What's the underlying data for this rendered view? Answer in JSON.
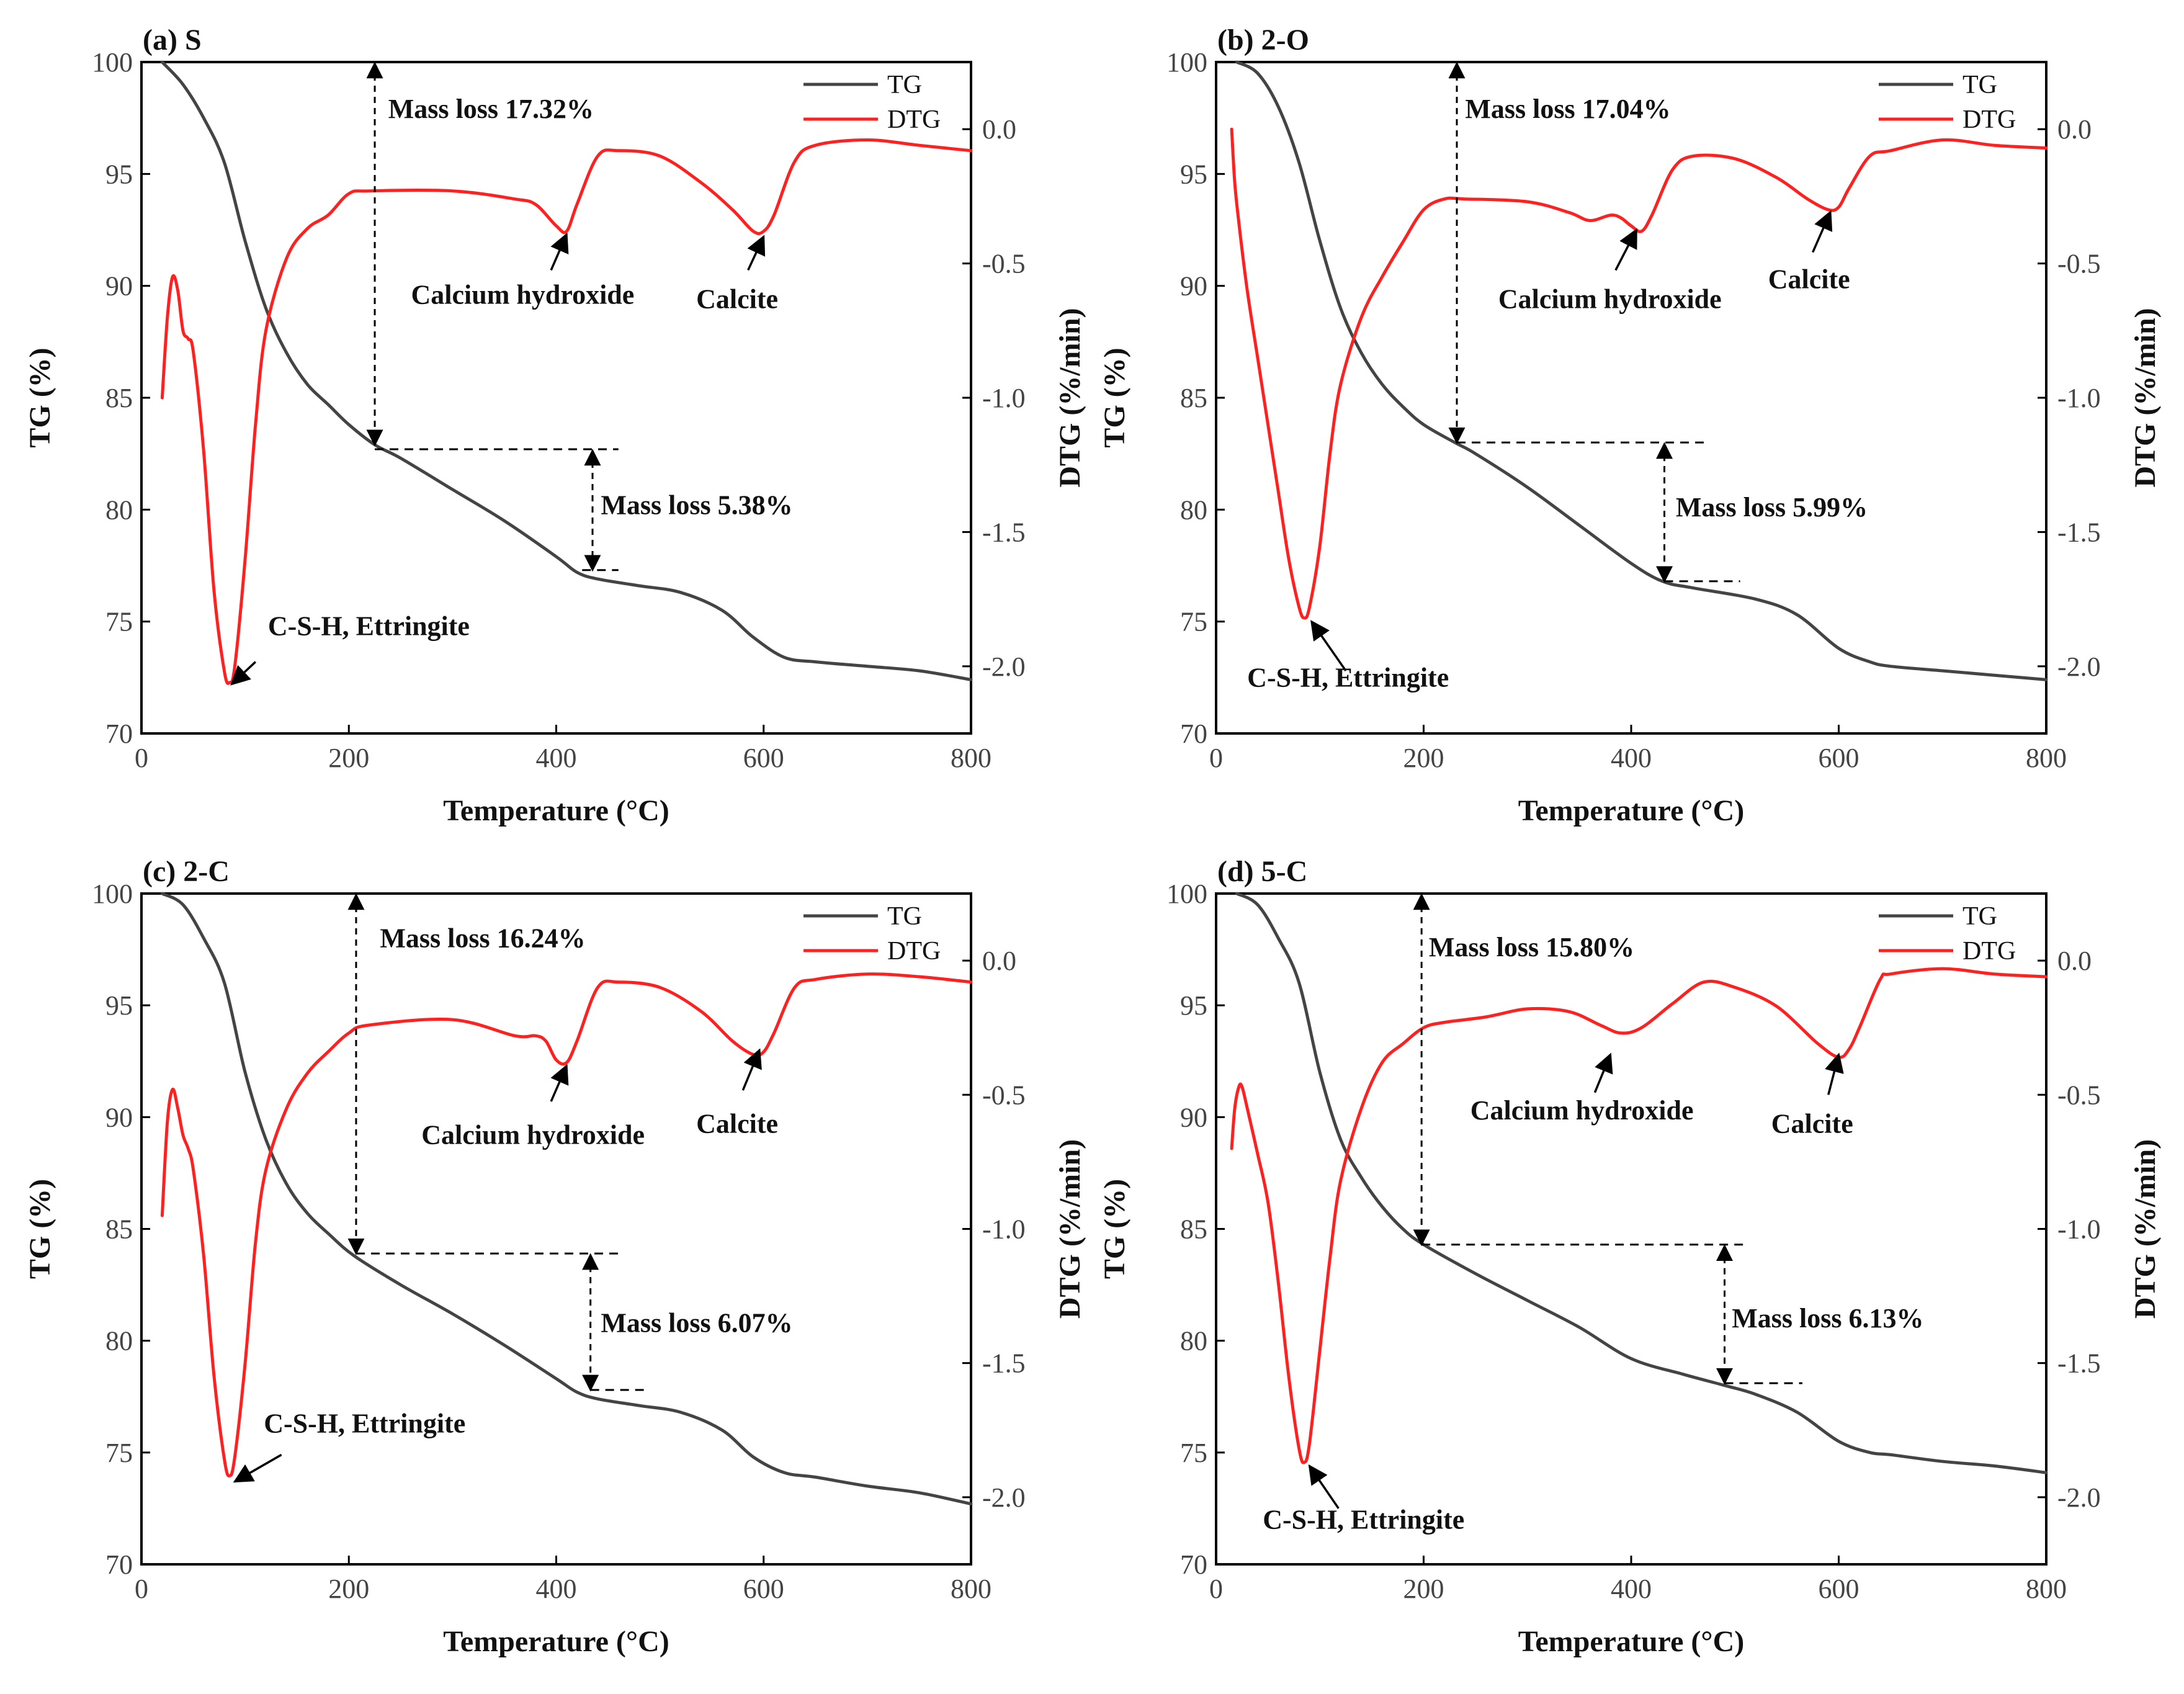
{
  "colors": {
    "tg": "#444444",
    "dtg": "#ff2020",
    "axis": "#000000",
    "text": "#111111"
  },
  "chart_data": [
    {
      "type": "line",
      "title": "(a) S",
      "xlabel": "Temperature (°C)",
      "ylabel": "TG (%)",
      "ylabel2": "DTG (%/min)",
      "xlim": [
        0,
        800
      ],
      "ylim": [
        70,
        100
      ],
      "y2lim": [
        -2.25,
        0.25
      ],
      "xticks": [
        "0",
        "200",
        "400",
        "600",
        "800"
      ],
      "yticks": [
        "70",
        "75",
        "80",
        "85",
        "90",
        "95",
        "100"
      ],
      "y2ticks": [
        "-2.0",
        "-1.5",
        "-1.0",
        "-0.5",
        "0.0"
      ],
      "legend": {
        "tg": "TG",
        "dtg": "DTG"
      },
      "series": [
        {
          "name": "TG",
          "axis": "left",
          "x": [
            20,
            40,
            60,
            80,
            100,
            120,
            140,
            160,
            180,
            200,
            225,
            250,
            300,
            350,
            400,
            420,
            440,
            480,
            520,
            560,
            590,
            620,
            650,
            700,
            750,
            800
          ],
          "values": [
            100,
            99,
            97.5,
            95.5,
            92,
            89,
            87,
            85.6,
            84.7,
            83.8,
            82.9,
            82.3,
            80.9,
            79.5,
            77.9,
            77.2,
            76.9,
            76.6,
            76.3,
            75.5,
            74.3,
            73.4,
            73.2,
            73,
            72.8,
            72.4
          ]
        },
        {
          "name": "DTG",
          "axis": "right",
          "x": [
            20,
            25,
            30,
            35,
            40,
            45,
            50,
            60,
            70,
            80,
            85,
            90,
            100,
            110,
            120,
            140,
            160,
            180,
            200,
            220,
            300,
            360,
            380,
            400,
            410,
            420,
            440,
            460,
            500,
            540,
            570,
            590,
            600,
            610,
            630,
            650,
            700,
            750,
            800
          ],
          "values": [
            -1.0,
            -0.7,
            -0.55,
            -0.6,
            -0.75,
            -0.78,
            -0.83,
            -1.2,
            -1.72,
            -2.02,
            -2.06,
            -2.0,
            -1.6,
            -1.1,
            -0.75,
            -0.48,
            -0.37,
            -0.32,
            -0.24,
            -0.23,
            -0.23,
            -0.26,
            -0.28,
            -0.36,
            -0.38,
            -0.28,
            -0.1,
            -0.08,
            -0.1,
            -0.2,
            -0.3,
            -0.38,
            -0.38,
            -0.32,
            -0.12,
            -0.06,
            -0.04,
            -0.06,
            -0.08
          ]
        }
      ],
      "dtg_offset": 0,
      "annotations": [
        {
          "label": "Mass loss 17.32%",
          "kind": "massloss",
          "x": 225,
          "y_top": 100,
          "y_bottom": 82.9,
          "y_line": 82.7,
          "line_x_end": 460,
          "text_x": 238,
          "text_y": 97.5
        },
        {
          "label": "Mass loss 5.38%",
          "kind": "massloss",
          "x": 435,
          "y_top": 82.7,
          "y_bottom": 77.3,
          "y_line": 77.3,
          "line_x_start": 425,
          "line_x_end": 460,
          "text_x": 443,
          "text_y": 79.8
        },
        {
          "label": "C-S-H, Ettringite",
          "kind": "arrow",
          "from": [
            110,
            73.2
          ],
          "to": [
            87,
            72.2
          ],
          "text_x": 122,
          "text_y": 74.4
        },
        {
          "label": "Calcium hydroxide",
          "kind": "arrow",
          "from": [
            395,
            90.7
          ],
          "to": [
            410,
            92.3
          ],
          "text_x": 260,
          "text_y": 89.2
        },
        {
          "label": "Calcite",
          "kind": "arrow",
          "from": [
            585,
            90.7
          ],
          "to": [
            600,
            92.2
          ],
          "text_x": 535,
          "text_y": 89.0
        }
      ]
    },
    {
      "type": "line",
      "title": "(b) 2-O",
      "xlabel": "Temperature (°C)",
      "ylabel": "TG (%)",
      "ylabel2": "DTG (%/min)",
      "xlim": [
        0,
        800
      ],
      "ylim": [
        70,
        100
      ],
      "y2lim": [
        -2.25,
        0.25
      ],
      "xticks": [
        "0",
        "200",
        "400",
        "600",
        "800"
      ],
      "yticks": [
        "70",
        "75",
        "80",
        "85",
        "90",
        "95",
        "100"
      ],
      "y2ticks": [
        "-2.0",
        "-1.5",
        "-1.0",
        "-0.5",
        "0.0"
      ],
      "legend": {
        "tg": "TG",
        "dtg": "DTG"
      },
      "series": [
        {
          "name": "TG",
          "axis": "left",
          "x": [
            20,
            40,
            60,
            80,
            100,
            120,
            140,
            160,
            180,
            200,
            230,
            250,
            300,
            350,
            400,
            430,
            460,
            520,
            560,
            600,
            630,
            650,
            700,
            750,
            800
          ],
          "values": [
            100,
            99.5,
            98,
            95.5,
            92,
            89,
            87,
            85.6,
            84.6,
            83.8,
            83,
            82.5,
            81,
            79.3,
            77.6,
            76.8,
            76.5,
            76,
            75.3,
            73.8,
            73.2,
            73,
            72.8,
            72.6,
            72.4
          ]
        },
        {
          "name": "DTG",
          "axis": "right",
          "x": [
            15,
            18,
            22,
            30,
            40,
            50,
            60,
            70,
            80,
            85,
            90,
            100,
            110,
            120,
            140,
            160,
            180,
            200,
            220,
            240,
            300,
            340,
            360,
            380,
            390,
            400,
            410,
            420,
            440,
            460,
            500,
            540,
            570,
            590,
            600,
            610,
            630,
            650,
            700,
            750,
            800
          ],
          "values": [
            0.0,
            -0.2,
            -0.35,
            -0.6,
            -0.85,
            -1.1,
            -1.35,
            -1.6,
            -1.78,
            -1.82,
            -1.78,
            -1.55,
            -1.2,
            -0.95,
            -0.7,
            -0.55,
            -0.42,
            -0.3,
            -0.26,
            -0.26,
            -0.27,
            -0.31,
            -0.34,
            -0.32,
            -0.33,
            -0.36,
            -0.38,
            -0.32,
            -0.15,
            -0.1,
            -0.11,
            -0.18,
            -0.26,
            -0.3,
            -0.29,
            -0.22,
            -0.1,
            -0.08,
            -0.04,
            -0.06,
            -0.07
          ]
        }
      ],
      "annotations": [
        {
          "label": "Mass loss 17.04%",
          "kind": "massloss",
          "x": 232,
          "y_top": 100,
          "y_bottom": 83.0,
          "y_line": 83.0,
          "line_x_end": 470,
          "text_x": 240,
          "text_y": 97.5
        },
        {
          "label": "Mass loss 5.99%",
          "kind": "massloss",
          "x": 432,
          "y_top": 83.0,
          "y_bottom": 76.8,
          "y_line": 76.8,
          "line_x_start": 432,
          "line_x_end": 505,
          "text_x": 443,
          "text_y": 79.7
        },
        {
          "label": "C-S-H, Ettringite",
          "kind": "arrow",
          "from": [
            125,
            72.8
          ],
          "to": [
            92,
            75.0
          ],
          "text_x": 30,
          "text_y": 72.1
        },
        {
          "label": "Calcium hydroxide",
          "kind": "arrow",
          "from": [
            385,
            90.7
          ],
          "to": [
            405,
            92.5
          ],
          "text_x": 272,
          "text_y": 89.0
        },
        {
          "label": "Calcite",
          "kind": "arrow",
          "from": [
            575,
            91.5
          ],
          "to": [
            592,
            93.3
          ],
          "text_x": 532,
          "text_y": 89.9
        }
      ]
    },
    {
      "type": "line",
      "title": "(c) 2-C",
      "xlabel": "Temperature (°C)",
      "ylabel": "TG (%)",
      "ylabel2": "DTG (%/min)",
      "xlim": [
        0,
        800
      ],
      "ylim": [
        70,
        100
      ],
      "y2lim": [
        -2.25,
        0.25
      ],
      "xticks": [
        "0",
        "200",
        "400",
        "600",
        "800"
      ],
      "yticks": [
        "70",
        "75",
        "80",
        "85",
        "90",
        "95",
        "100"
      ],
      "y2ticks": [
        "-2.0",
        "-1.5",
        "-1.0",
        "-0.5",
        "0.0"
      ],
      "legend": {
        "tg": "TG",
        "dtg": "DTG"
      },
      "series": [
        {
          "name": "TG",
          "axis": "left",
          "x": [
            20,
            40,
            60,
            80,
            100,
            120,
            140,
            160,
            180,
            205,
            250,
            300,
            350,
            400,
            420,
            440,
            480,
            520,
            560,
            590,
            620,
            650,
            700,
            750,
            800
          ],
          "values": [
            100,
            99.5,
            98,
            96,
            92,
            89,
            87,
            85.7,
            84.8,
            83.8,
            82.5,
            81.2,
            79.8,
            78.3,
            77.7,
            77.4,
            77.1,
            76.8,
            76,
            74.8,
            74.1,
            73.9,
            73.5,
            73.2,
            72.7
          ]
        },
        {
          "name": "DTG",
          "axis": "right",
          "x": [
            20,
            25,
            30,
            35,
            40,
            45,
            50,
            60,
            70,
            80,
            85,
            90,
            100,
            110,
            120,
            140,
            160,
            180,
            200,
            220,
            300,
            360,
            380,
            390,
            400,
            410,
            420,
            440,
            460,
            500,
            540,
            570,
            590,
            600,
            610,
            630,
            650,
            700,
            750,
            800
          ],
          "values": [
            -0.95,
            -0.6,
            -0.48,
            -0.55,
            -0.65,
            -0.7,
            -0.78,
            -1.1,
            -1.55,
            -1.86,
            -1.92,
            -1.85,
            -1.5,
            -1.05,
            -0.78,
            -0.55,
            -0.42,
            -0.34,
            -0.27,
            -0.24,
            -0.22,
            -0.28,
            -0.28,
            -0.3,
            -0.37,
            -0.38,
            -0.3,
            -0.1,
            -0.08,
            -0.1,
            -0.19,
            -0.3,
            -0.35,
            -0.34,
            -0.27,
            -0.1,
            -0.07,
            -0.05,
            -0.06,
            -0.08
          ]
        }
      ],
      "annotations": [
        {
          "label": "Mass loss 16.24%",
          "kind": "massloss",
          "x": 207,
          "y_top": 100,
          "y_bottom": 83.9,
          "y_line": 83.9,
          "line_x_end": 460,
          "text_x": 230,
          "text_y": 97.6
        },
        {
          "label": "Mass loss 6.07%",
          "kind": "massloss",
          "x": 433,
          "y_top": 83.9,
          "y_bottom": 77.8,
          "y_line": 77.8,
          "line_x_start": 433,
          "line_x_end": 490,
          "text_x": 443,
          "text_y": 80.4
        },
        {
          "label": "C-S-H, Ettringite",
          "kind": "arrow",
          "from": [
            135,
            74.9
          ],
          "to": [
            90,
            73.7
          ],
          "text_x": 118,
          "text_y": 75.9
        },
        {
          "label": "Calcium hydroxide",
          "kind": "arrow",
          "from": [
            395,
            90.7
          ],
          "to": [
            410,
            92.3
          ],
          "text_x": 270,
          "text_y": 88.8
        },
        {
          "label": "Calcite",
          "kind": "arrow",
          "from": [
            580,
            91.2
          ],
          "to": [
            596,
            93.0
          ],
          "text_x": 535,
          "text_y": 89.3
        }
      ]
    },
    {
      "type": "line",
      "title": "(d) 5-C",
      "xlabel": "Temperature (°C)",
      "ylabel": "TG (%)",
      "ylabel2": "DTG (%/min)",
      "xlim": [
        0,
        800
      ],
      "ylim": [
        70,
        100
      ],
      "y2lim": [
        -2.25,
        0.25
      ],
      "xticks": [
        "0",
        "200",
        "400",
        "600",
        "800"
      ],
      "yticks": [
        "70",
        "75",
        "80",
        "85",
        "90",
        "95",
        "100"
      ],
      "y2ticks": [
        "-2.0",
        "-1.5",
        "-1.0",
        "-0.5",
        "0.0"
      ],
      "legend": {
        "tg": "TG",
        "dtg": "DTG"
      },
      "series": [
        {
          "name": "TG",
          "axis": "left",
          "x": [
            20,
            40,
            60,
            80,
            100,
            120,
            140,
            160,
            180,
            200,
            250,
            300,
            350,
            400,
            450,
            490,
            520,
            560,
            600,
            630,
            650,
            700,
            750,
            800
          ],
          "values": [
            100,
            99.5,
            98,
            96,
            92,
            89,
            87.3,
            86,
            85,
            84.3,
            83,
            81.8,
            80.6,
            79.2,
            78.5,
            78,
            77.6,
            76.8,
            75.5,
            75,
            74.9,
            74.6,
            74.4,
            74.1
          ]
        },
        {
          "name": "DTG",
          "axis": "right",
          "x": [
            15,
            18,
            22,
            25,
            30,
            40,
            50,
            60,
            70,
            80,
            85,
            90,
            100,
            110,
            120,
            140,
            160,
            180,
            200,
            220,
            260,
            300,
            340,
            370,
            390,
            410,
            440,
            470,
            500,
            540,
            580,
            600,
            610,
            620,
            640,
            650,
            700,
            750,
            800
          ],
          "values": [
            -0.7,
            -0.55,
            -0.47,
            -0.47,
            -0.55,
            -0.72,
            -0.9,
            -1.2,
            -1.55,
            -1.82,
            -1.87,
            -1.8,
            -1.45,
            -1.1,
            -0.82,
            -0.55,
            -0.38,
            -0.31,
            -0.25,
            -0.23,
            -0.21,
            -0.18,
            -0.19,
            -0.24,
            -0.27,
            -0.25,
            -0.16,
            -0.08,
            -0.1,
            -0.17,
            -0.31,
            -0.36,
            -0.33,
            -0.25,
            -0.07,
            -0.05,
            -0.03,
            -0.05,
            -0.06
          ]
        }
      ],
      "annotations": [
        {
          "label": "Mass loss 15.80%",
          "kind": "massloss",
          "x": 198,
          "y_top": 100,
          "y_bottom": 84.3,
          "y_line": 84.3,
          "line_x_end": 510,
          "text_x": 205,
          "text_y": 97.2
        },
        {
          "label": "Mass loss 6.13%",
          "kind": "massloss",
          "x": 490,
          "y_top": 84.3,
          "y_bottom": 78.1,
          "y_line": 78.1,
          "line_x_start": 490,
          "line_x_end": 565,
          "text_x": 497,
          "text_y": 80.6
        },
        {
          "label": "C-S-H, Ettringite",
          "kind": "arrow",
          "from": [
            118,
            72.5
          ],
          "to": [
            90,
            74.4
          ],
          "text_x": 45,
          "text_y": 71.6
        },
        {
          "label": "Calcium hydroxide",
          "kind": "arrow",
          "from": [
            365,
            91.1
          ],
          "to": [
            380,
            92.8
          ],
          "text_x": 245,
          "text_y": 89.9
        },
        {
          "label": "Calcite",
          "kind": "arrow",
          "from": [
            590,
            91.0
          ],
          "to": [
            600,
            92.8
          ],
          "text_x": 535,
          "text_y": 89.3
        }
      ]
    }
  ]
}
